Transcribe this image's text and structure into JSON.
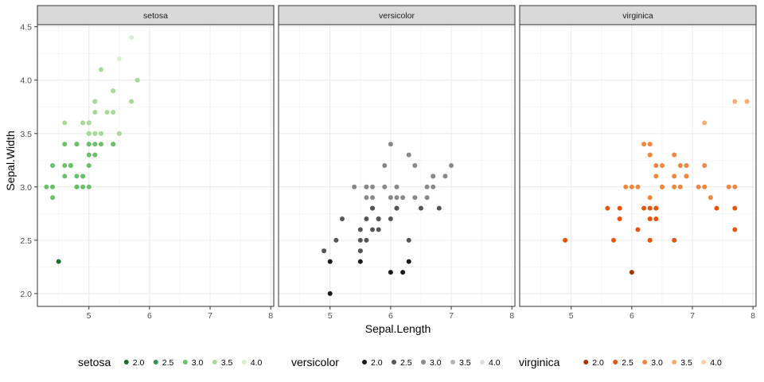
{
  "chart_data": {
    "type": "scatter",
    "xlabel": "Sepal.Length",
    "ylabel": "Sepal.Width",
    "xlim": [
      4.15,
      8.05
    ],
    "ylim": [
      1.88,
      4.52
    ],
    "x_ticks": [
      5,
      6,
      7,
      8
    ],
    "y_ticks": [
      2.0,
      2.5,
      3.0,
      3.5,
      4.0,
      4.5
    ],
    "y_tick_labels": [
      "2.0",
      "2.5",
      "3.0",
      "3.5",
      "4.0",
      "4.5"
    ],
    "grid": true,
    "facets": [
      {
        "name": "setosa",
        "legend_title": "setosa",
        "legend_labels": [
          "2.0",
          "2.5",
          "3.0",
          "3.5",
          "4.0"
        ],
        "palette": [
          "#1b6e2c",
          "#2e9449",
          "#6abf6a",
          "#a6da95",
          "#d8f0cf"
        ],
        "points": [
          [
            5.1,
            3.5
          ],
          [
            4.9,
            3.0
          ],
          [
            4.7,
            3.2
          ],
          [
            4.6,
            3.1
          ],
          [
            5.0,
            3.6
          ],
          [
            5.4,
            3.9
          ],
          [
            4.6,
            3.4
          ],
          [
            5.0,
            3.4
          ],
          [
            4.4,
            2.9
          ],
          [
            4.9,
            3.1
          ],
          [
            5.4,
            3.7
          ],
          [
            4.8,
            3.4
          ],
          [
            4.8,
            3.0
          ],
          [
            4.3,
            3.0
          ],
          [
            5.8,
            4.0
          ],
          [
            5.7,
            4.4
          ],
          [
            5.4,
            3.9
          ],
          [
            5.1,
            3.5
          ],
          [
            5.7,
            3.8
          ],
          [
            5.1,
            3.8
          ],
          [
            5.4,
            3.4
          ],
          [
            5.1,
            3.7
          ],
          [
            4.6,
            3.6
          ],
          [
            5.1,
            3.3
          ],
          [
            4.8,
            3.4
          ],
          [
            5.0,
            3.0
          ],
          [
            5.0,
            3.4
          ],
          [
            5.2,
            3.5
          ],
          [
            5.2,
            3.4
          ],
          [
            4.7,
            3.2
          ],
          [
            4.8,
            3.1
          ],
          [
            5.4,
            3.4
          ],
          [
            5.2,
            4.1
          ],
          [
            5.5,
            4.2
          ],
          [
            4.9,
            3.1
          ],
          [
            5.0,
            3.2
          ],
          [
            5.5,
            3.5
          ],
          [
            4.9,
            3.6
          ],
          [
            4.4,
            3.0
          ],
          [
            5.1,
            3.4
          ],
          [
            5.0,
            3.5
          ],
          [
            4.5,
            2.3
          ],
          [
            4.4,
            3.2
          ],
          [
            5.0,
            3.5
          ],
          [
            5.1,
            3.8
          ],
          [
            4.8,
            3.0
          ],
          [
            5.1,
            3.8
          ],
          [
            4.6,
            3.2
          ],
          [
            5.3,
            3.7
          ],
          [
            5.0,
            3.3
          ]
        ]
      },
      {
        "name": "versicolor",
        "legend_title": "versicolor",
        "legend_labels": [
          "2.0",
          "2.5",
          "3.0",
          "3.5",
          "4.0"
        ],
        "palette": [
          "#1a1a1a",
          "#555555",
          "#888888",
          "#b3b3b3",
          "#dddddd"
        ],
        "points": [
          [
            7.0,
            3.2
          ],
          [
            6.4,
            3.2
          ],
          [
            6.9,
            3.1
          ],
          [
            5.5,
            2.3
          ],
          [
            6.5,
            2.8
          ],
          [
            5.7,
            2.8
          ],
          [
            6.3,
            3.3
          ],
          [
            4.9,
            2.4
          ],
          [
            6.6,
            2.9
          ],
          [
            5.2,
            2.7
          ],
          [
            5.0,
            2.0
          ],
          [
            5.9,
            3.0
          ],
          [
            6.0,
            2.2
          ],
          [
            6.1,
            2.9
          ],
          [
            5.6,
            2.9
          ],
          [
            6.7,
            3.1
          ],
          [
            5.6,
            3.0
          ],
          [
            5.8,
            2.7
          ],
          [
            6.2,
            2.2
          ],
          [
            5.6,
            2.5
          ],
          [
            5.9,
            3.2
          ],
          [
            6.1,
            2.8
          ],
          [
            6.3,
            2.5
          ],
          [
            6.1,
            2.8
          ],
          [
            6.4,
            2.9
          ],
          [
            6.6,
            3.0
          ],
          [
            6.8,
            2.8
          ],
          [
            6.7,
            3.0
          ],
          [
            6.0,
            2.9
          ],
          [
            5.7,
            2.6
          ],
          [
            5.5,
            2.4
          ],
          [
            5.5,
            2.4
          ],
          [
            5.8,
            2.7
          ],
          [
            6.0,
            2.7
          ],
          [
            5.4,
            3.0
          ],
          [
            6.0,
            3.4
          ],
          [
            6.7,
            3.1
          ],
          [
            6.3,
            2.3
          ],
          [
            5.6,
            3.0
          ],
          [
            5.5,
            2.5
          ],
          [
            5.5,
            2.6
          ],
          [
            6.1,
            3.0
          ],
          [
            5.8,
            2.6
          ],
          [
            5.0,
            2.3
          ],
          [
            5.6,
            2.7
          ],
          [
            5.7,
            3.0
          ],
          [
            5.7,
            2.9
          ],
          [
            6.2,
            2.9
          ],
          [
            5.1,
            2.5
          ],
          [
            5.7,
            2.8
          ]
        ]
      },
      {
        "name": "virginica",
        "legend_title": "virginica",
        "legend_labels": [
          "2.0",
          "2.5",
          "3.0",
          "3.5",
          "4.0"
        ],
        "palette": [
          "#a63603",
          "#e6550d",
          "#f0873e",
          "#f9ac6c",
          "#fdd0a2"
        ],
        "points": [
          [
            6.3,
            3.3
          ],
          [
            5.8,
            2.7
          ],
          [
            7.1,
            3.0
          ],
          [
            6.3,
            2.9
          ],
          [
            6.5,
            3.0
          ],
          [
            7.6,
            3.0
          ],
          [
            4.9,
            2.5
          ],
          [
            7.3,
            2.9
          ],
          [
            6.7,
            2.5
          ],
          [
            7.2,
            3.6
          ],
          [
            6.5,
            3.2
          ],
          [
            6.4,
            2.7
          ],
          [
            6.8,
            3.0
          ],
          [
            5.7,
            2.5
          ],
          [
            5.8,
            2.8
          ],
          [
            6.4,
            3.2
          ],
          [
            6.5,
            3.0
          ],
          [
            7.7,
            3.8
          ],
          [
            7.7,
            2.6
          ],
          [
            6.0,
            2.2
          ],
          [
            6.9,
            3.2
          ],
          [
            5.6,
            2.8
          ],
          [
            7.7,
            2.8
          ],
          [
            6.3,
            2.7
          ],
          [
            6.7,
            3.3
          ],
          [
            7.2,
            3.2
          ],
          [
            6.2,
            2.8
          ],
          [
            6.1,
            3.0
          ],
          [
            6.4,
            2.8
          ],
          [
            7.2,
            3.0
          ],
          [
            7.4,
            2.8
          ],
          [
            7.9,
            3.8
          ],
          [
            6.4,
            2.8
          ],
          [
            6.3,
            2.8
          ],
          [
            6.1,
            2.6
          ],
          [
            7.7,
            3.0
          ],
          [
            6.3,
            3.4
          ],
          [
            6.4,
            3.1
          ],
          [
            6.0,
            3.0
          ],
          [
            6.9,
            3.1
          ],
          [
            6.7,
            3.1
          ],
          [
            6.9,
            3.1
          ],
          [
            6.8,
            3.2
          ],
          [
            6.7,
            3.0
          ],
          [
            6.3,
            2.5
          ],
          [
            6.5,
            3.0
          ],
          [
            6.2,
            3.4
          ],
          [
            5.9,
            3.0
          ]
        ]
      }
    ]
  }
}
